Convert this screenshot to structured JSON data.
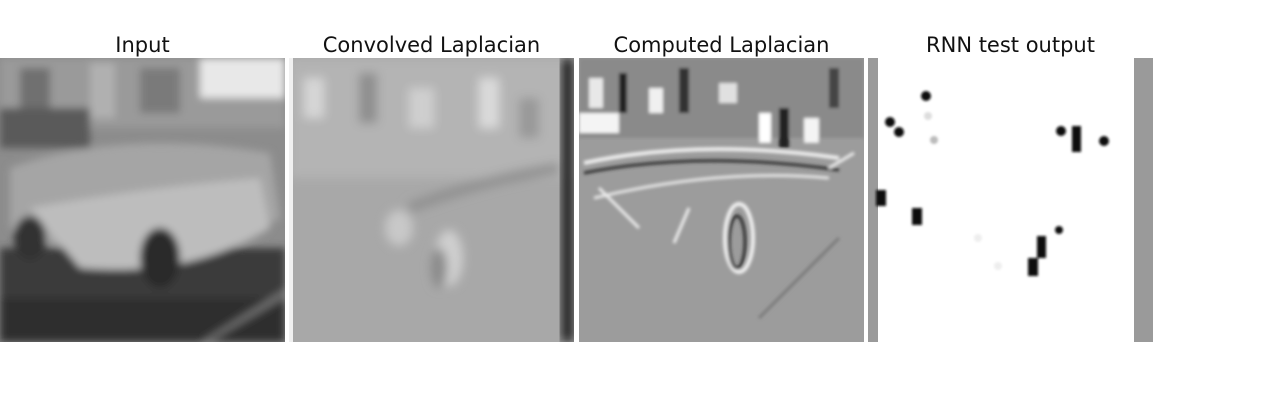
{
  "panels": [
    {
      "title": "Input"
    },
    {
      "title": "Convolved Laplacian"
    },
    {
      "title": "Computed Laplacian"
    },
    {
      "title": "RNN test output"
    }
  ]
}
